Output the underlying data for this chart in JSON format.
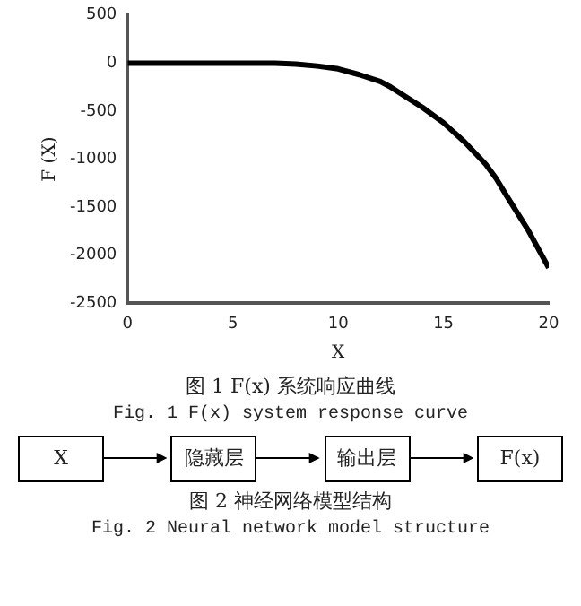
{
  "chart_data": [
    {
      "type": "line",
      "xlabel": "X",
      "ylabel": "F (X)",
      "x": [
        0,
        2,
        4,
        5,
        6,
        7,
        7.5,
        8,
        9,
        10,
        11,
        12,
        12.5,
        13,
        14,
        15,
        16,
        17,
        17.5,
        18,
        19,
        20
      ],
      "series": [
        {
          "color": "#000000",
          "values": [
            0,
            0,
            0,
            0,
            0,
            -2,
            -5,
            -10,
            -30,
            -60,
            -120,
            -190,
            -250,
            -320,
            -460,
            -620,
            -820,
            -1050,
            -1200,
            -1380,
            -1730,
            -2130
          ]
        }
      ],
      "xlim": [
        0,
        20
      ],
      "xticks": [
        0,
        5,
        10,
        15,
        20
      ],
      "ylim": [
        -2500,
        500
      ],
      "yticks": [
        -2500,
        -2000,
        -1500,
        -1000,
        -500,
        0,
        500
      ],
      "grid": false,
      "legend": false,
      "marker": "none",
      "line_style": "solid",
      "annotations": [
        "图 1 F(x) 系统响应曲线",
        "Fig. 1 F(x) system response curve"
      ]
    },
    {
      "type": "other",
      "categories": [
        "X",
        "隐藏层",
        "输出层",
        "F(x)"
      ],
      "annotations": [
        "图 2 神经网络模型结构",
        "Fig. 2 Neural network model structure"
      ]
    }
  ]
}
